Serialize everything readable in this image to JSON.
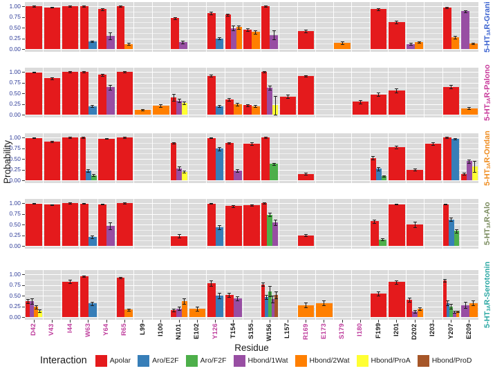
{
  "figure": {
    "y_axis_title": "Probability",
    "x_axis_title": "Residue"
  },
  "legend": {
    "title": "Interaction",
    "items": [
      {
        "label": "Apolar",
        "color": "#E41A1C"
      },
      {
        "label": "Aro/E2F",
        "color": "#377EB8"
      },
      {
        "label": "Aro/F2F",
        "color": "#4DAF4A"
      },
      {
        "label": "Hbond/1Wat",
        "color": "#984EA3"
      },
      {
        "label": "Hbond/2Wat",
        "color": "#FF7F00"
      },
      {
        "label": "Hbond/ProA",
        "color": "#FFFF33"
      },
      {
        "label": "Hbond/ProD",
        "color": "#A65628"
      }
    ]
  },
  "colors": {
    "panel_bg": "#DBDBDB",
    "grid": "#FFFFFF",
    "y_tick_text": "#2F3D99",
    "x_label_normal": "#1A1A1A",
    "x_label_highlight": "#BE3C9C",
    "tick_mark": "#333333",
    "error_bar": "#1A1A1A"
  },
  "chart_data": {
    "type": "bar",
    "ylim": [
      0,
      1
    ],
    "ytick_values": [
      1,
      0.75,
      0.5,
      0.25,
      0
    ],
    "ytick_labels": [
      "1.00",
      "0.75",
      "0.50",
      "0.25",
      "0.00"
    ],
    "grid": "on",
    "legend_position": "bottom",
    "categories": [
      "D42",
      "V43",
      "I44",
      "W63",
      "Y64",
      "R65",
      "L99",
      "I100",
      "N101",
      "E102",
      "Y126",
      "T154",
      "S155",
      "W156",
      "L157",
      "R169",
      "E173",
      "S179",
      "I180",
      "F199",
      "I201",
      "D202",
      "I203",
      "Y207",
      "E209"
    ],
    "highlighted_categories": [
      "D42",
      "V43",
      "I44",
      "W63",
      "Y64",
      "R65",
      "Y126",
      "R169",
      "E173",
      "S179",
      "I180"
    ],
    "interactions": [
      "Apolar",
      "Aro/E2F",
      "Aro/F2F",
      "Hbond/1Wat",
      "Hbond/2Wat",
      "Hbond/ProA",
      "Hbond/ProD"
    ],
    "interaction_colors": {
      "Apolar": "#E41A1C",
      "Aro/E2F": "#377EB8",
      "Aro/F2F": "#4DAF4A",
      "Hbond/1Wat": "#984EA3",
      "Hbond/2Wat": "#FF7F00",
      "Hbond/ProA": "#FFFF33",
      "Hbond/ProD": "#A65628"
    },
    "bar_format": [
      "residue",
      "interaction",
      "probability",
      "error"
    ],
    "panels": [
      {
        "label_prefix": "5-HT",
        "label_sub": "3A",
        "label_suffix": "R-Grani",
        "label_color": "#3C63D0",
        "bars": [
          [
            "D42",
            "Apolar",
            1.0,
            0.01
          ],
          [
            "V43",
            "Apolar",
            0.97,
            0.01
          ],
          [
            "I44",
            "Apolar",
            1.0,
            0.01
          ],
          [
            "W63",
            "Apolar",
            1.0,
            0.01
          ],
          [
            "W63",
            "Aro/E2F",
            0.18,
            0.02
          ],
          [
            "Y64",
            "Apolar",
            0.93,
            0.02
          ],
          [
            "Y64",
            "Hbond/1Wat",
            0.3,
            0.08
          ],
          [
            "R65",
            "Apolar",
            1.0,
            0.01
          ],
          [
            "R65",
            "Hbond/2Wat",
            0.12,
            0.02
          ],
          [
            "N101",
            "Apolar",
            0.72,
            0.03
          ],
          [
            "N101",
            "Hbond/1Wat",
            0.16,
            0.03
          ],
          [
            "Y126",
            "Apolar",
            0.84,
            0.03
          ],
          [
            "Y126",
            "Aro/E2F",
            0.25,
            0.03
          ],
          [
            "T154",
            "Apolar",
            0.8,
            0.03
          ],
          [
            "T154",
            "Hbond/1Wat",
            0.49,
            0.06
          ],
          [
            "T154",
            "Hbond/2Wat",
            0.51,
            0.04
          ],
          [
            "S155",
            "Apolar",
            0.45,
            0.03
          ],
          [
            "S155",
            "Hbond/2Wat",
            0.4,
            0.04
          ],
          [
            "W156",
            "Apolar",
            1.0,
            0.01
          ],
          [
            "W156",
            "Hbond/1Wat",
            0.33,
            0.1
          ],
          [
            "R169",
            "Apolar",
            0.42,
            0.03
          ],
          [
            "S179",
            "Hbond/2Wat",
            0.15,
            0.03
          ],
          [
            "F199",
            "Apolar",
            0.93,
            0.02
          ],
          [
            "I201",
            "Apolar",
            0.63,
            0.03
          ],
          [
            "D202",
            "Hbond/1Wat",
            0.12,
            0.02
          ],
          [
            "D202",
            "Hbond/2Wat",
            0.16,
            0.02
          ],
          [
            "Y207",
            "Apolar",
            0.97,
            0.02
          ],
          [
            "Y207",
            "Hbond/2Wat",
            0.27,
            0.03
          ],
          [
            "E209",
            "Hbond/1Wat",
            0.88,
            0.03
          ],
          [
            "E209",
            "Hbond/2Wat",
            0.13,
            0.02
          ]
        ]
      },
      {
        "label_prefix": "5-HT",
        "label_sub": "3A",
        "label_suffix": "R-Palono",
        "label_color": "#C8399A",
        "bars": [
          [
            "D42",
            "Apolar",
            0.99,
            0.01
          ],
          [
            "V43",
            "Apolar",
            0.85,
            0.02
          ],
          [
            "I44",
            "Apolar",
            1.0,
            0.01
          ],
          [
            "W63",
            "Apolar",
            1.0,
            0.01
          ],
          [
            "W63",
            "Aro/E2F",
            0.2,
            0.03
          ],
          [
            "Y64",
            "Apolar",
            0.93,
            0.02
          ],
          [
            "Y64",
            "Hbond/1Wat",
            0.64,
            0.06
          ],
          [
            "R65",
            "Apolar",
            1.0,
            0.01
          ],
          [
            "L99",
            "Hbond/2Wat",
            0.11,
            0.02
          ],
          [
            "I100",
            "Hbond/2Wat",
            0.21,
            0.04
          ],
          [
            "N101",
            "Apolar",
            0.4,
            0.08
          ],
          [
            "N101",
            "Hbond/1Wat",
            0.33,
            0.04
          ],
          [
            "N101",
            "Hbond/ProA",
            0.27,
            0.03
          ],
          [
            "Y126",
            "Apolar",
            0.91,
            0.02
          ],
          [
            "Y126",
            "Aro/E2F",
            0.2,
            0.03
          ],
          [
            "T154",
            "Apolar",
            0.35,
            0.03
          ],
          [
            "T154",
            "Hbond/2Wat",
            0.24,
            0.03
          ],
          [
            "S155",
            "Apolar",
            0.22,
            0.02
          ],
          [
            "S155",
            "Hbond/2Wat",
            0.2,
            0.03
          ],
          [
            "W156",
            "Apolar",
            1.0,
            0.01
          ],
          [
            "W156",
            "Hbond/1Wat",
            0.63,
            0.05
          ],
          [
            "W156",
            "Hbond/ProA",
            0.22,
            0.22
          ],
          [
            "L157",
            "Apolar",
            0.42,
            0.04
          ],
          [
            "R169",
            "Apolar",
            0.9,
            0.02
          ],
          [
            "I180",
            "Apolar",
            0.3,
            0.04
          ],
          [
            "F199",
            "Apolar",
            0.47,
            0.04
          ],
          [
            "I201",
            "Apolar",
            0.57,
            0.05
          ],
          [
            "Y207",
            "Apolar",
            0.65,
            0.04
          ],
          [
            "E209",
            "Hbond/2Wat",
            0.15,
            0.02
          ]
        ]
      },
      {
        "label_prefix": "5-HT",
        "label_sub": "3A",
        "label_suffix": "R-Ondan",
        "label_color": "#EF8C1F",
        "bars": [
          [
            "D42",
            "Apolar",
            0.99,
            0.01
          ],
          [
            "V43",
            "Apolar",
            0.9,
            0.02
          ],
          [
            "I44",
            "Apolar",
            1.0,
            0.01
          ],
          [
            "W63",
            "Apolar",
            1.0,
            0.01
          ],
          [
            "W63",
            "Aro/E2F",
            0.23,
            0.03
          ],
          [
            "W63",
            "Aro/F2F",
            0.12,
            0.02
          ],
          [
            "Y64",
            "Apolar",
            0.97,
            0.01
          ],
          [
            "R65",
            "Apolar",
            1.0,
            0.01
          ],
          [
            "N101",
            "Apolar",
            0.87,
            0.02
          ],
          [
            "N101",
            "Hbond/1Wat",
            0.28,
            0.04
          ],
          [
            "N101",
            "Hbond/ProA",
            0.2,
            0.02
          ],
          [
            "Y126",
            "Apolar",
            0.99,
            0.01
          ],
          [
            "Y126",
            "Aro/E2F",
            0.74,
            0.04
          ],
          [
            "T154",
            "Apolar",
            0.87,
            0.02
          ],
          [
            "T154",
            "Hbond/1Wat",
            0.23,
            0.03
          ],
          [
            "S155",
            "Apolar",
            0.85,
            0.03
          ],
          [
            "W156",
            "Apolar",
            1.0,
            0.01
          ],
          [
            "W156",
            "Aro/F2F",
            0.38,
            0.03
          ],
          [
            "R169",
            "Apolar",
            0.15,
            0.02
          ],
          [
            "F199",
            "Apolar",
            0.52,
            0.04
          ],
          [
            "F199",
            "Aro/E2F",
            0.27,
            0.04
          ],
          [
            "F199",
            "Aro/F2F",
            0.1,
            0.02
          ],
          [
            "I201",
            "Apolar",
            0.78,
            0.03
          ],
          [
            "D202",
            "Apolar",
            0.25,
            0.03
          ],
          [
            "I203",
            "Apolar",
            0.85,
            0.03
          ],
          [
            "Y207",
            "Apolar",
            1.0,
            0.01
          ],
          [
            "Y207",
            "Aro/E2F",
            0.97,
            0.02
          ],
          [
            "E209",
            "Apolar",
            0.15,
            0.02
          ],
          [
            "E209",
            "Hbond/1Wat",
            0.45,
            0.04
          ],
          [
            "E209",
            "Hbond/ProA",
            0.32,
            0.13
          ]
        ]
      },
      {
        "label_prefix": "5-HT",
        "label_sub": "3A",
        "label_suffix": "R-Alo",
        "label_color": "#7A8B5E",
        "bars": [
          [
            "D42",
            "Apolar",
            0.99,
            0.01
          ],
          [
            "V43",
            "Apolar",
            0.96,
            0.01
          ],
          [
            "I44",
            "Apolar",
            1.0,
            0.01
          ],
          [
            "W63",
            "Apolar",
            0.99,
            0.01
          ],
          [
            "W63",
            "Aro/E2F",
            0.21,
            0.03
          ],
          [
            "Y64",
            "Apolar",
            0.97,
            0.01
          ],
          [
            "Y64",
            "Hbond/1Wat",
            0.47,
            0.08
          ],
          [
            "R65",
            "Apolar",
            1.0,
            0.01
          ],
          [
            "N101",
            "Apolar",
            0.23,
            0.04
          ],
          [
            "Y126",
            "Apolar",
            0.99,
            0.01
          ],
          [
            "Y126",
            "Aro/E2F",
            0.44,
            0.05
          ],
          [
            "T154",
            "Apolar",
            0.93,
            0.02
          ],
          [
            "S155",
            "Apolar",
            0.95,
            0.02
          ],
          [
            "W156",
            "Apolar",
            1.0,
            0.01
          ],
          [
            "W156",
            "Aro/F2F",
            0.73,
            0.04
          ],
          [
            "W156",
            "Hbond/1Wat",
            0.55,
            0.06
          ],
          [
            "R169",
            "Apolar",
            0.25,
            0.03
          ],
          [
            "F199",
            "Apolar",
            0.58,
            0.04
          ],
          [
            "F199",
            "Aro/F2F",
            0.15,
            0.02
          ],
          [
            "I201",
            "Apolar",
            0.97,
            0.01
          ],
          [
            "D202",
            "Apolar",
            0.5,
            0.06
          ],
          [
            "Y207",
            "Apolar",
            0.97,
            0.01
          ],
          [
            "Y207",
            "Aro/E2F",
            0.62,
            0.04
          ],
          [
            "Y207",
            "Aro/F2F",
            0.35,
            0.04
          ]
        ]
      },
      {
        "label_prefix": "5-HT",
        "label_sub": "3A",
        "label_suffix": "R-Serotonin",
        "label_color": "#2CA8A4",
        "bars": [
          [
            "D42",
            "Apolar",
            0.37,
            0.05
          ],
          [
            "D42",
            "Hbond/1Wat",
            0.37,
            0.06
          ],
          [
            "D42",
            "Hbond/2Wat",
            0.24,
            0.04
          ],
          [
            "D42",
            "Hbond/ProA",
            0.15,
            0.03
          ],
          [
            "I44",
            "Apolar",
            0.83,
            0.04
          ],
          [
            "W63",
            "Apolar",
            0.95,
            0.02
          ],
          [
            "W63",
            "Aro/E2F",
            0.32,
            0.04
          ],
          [
            "R65",
            "Apolar",
            0.92,
            0.02
          ],
          [
            "R65",
            "Hbond/2Wat",
            0.17,
            0.03
          ],
          [
            "N101",
            "Apolar",
            0.16,
            0.03
          ],
          [
            "N101",
            "Hbond/1Wat",
            0.2,
            0.04
          ],
          [
            "N101",
            "Hbond/2Wat",
            0.37,
            0.06
          ],
          [
            "E102",
            "Hbond/2Wat",
            0.19,
            0.05
          ],
          [
            "Y126",
            "Apolar",
            0.79,
            0.06
          ],
          [
            "Y126",
            "Aro/E2F",
            0.5,
            0.06
          ],
          [
            "T154",
            "Apolar",
            0.51,
            0.05
          ],
          [
            "T154",
            "Hbond/1Wat",
            0.44,
            0.05
          ],
          [
            "W156",
            "Apolar",
            0.76,
            0.04
          ],
          [
            "W156",
            "Aro/E2F",
            0.47,
            0.05
          ],
          [
            "W156",
            "Aro/F2F",
            0.6,
            0.12
          ],
          [
            "W156",
            "Hbond/1Wat",
            0.42,
            0.08
          ],
          [
            "W156",
            "Hbond/ProD",
            0.52,
            0.08
          ],
          [
            "R169",
            "Hbond/2Wat",
            0.28,
            0.06
          ],
          [
            "E173",
            "Hbond/2Wat",
            0.33,
            0.05
          ],
          [
            "F199",
            "Apolar",
            0.55,
            0.05
          ],
          [
            "I201",
            "Apolar",
            0.82,
            0.04
          ],
          [
            "D202",
            "Apolar",
            0.4,
            0.05
          ],
          [
            "D202",
            "Hbond/1Wat",
            0.13,
            0.03
          ],
          [
            "D202",
            "Hbond/2Wat",
            0.19,
            0.03
          ],
          [
            "Y207",
            "Apolar",
            0.85,
            0.03
          ],
          [
            "Y207",
            "Aro/E2F",
            0.33,
            0.05
          ],
          [
            "Y207",
            "Aro/F2F",
            0.25,
            0.06
          ],
          [
            "Y207",
            "Hbond/1Wat",
            0.12,
            0.02
          ],
          [
            "Y207",
            "Hbond/2Wat",
            0.13,
            0.02
          ],
          [
            "E209",
            "Hbond/1Wat",
            0.28,
            0.07
          ],
          [
            "E209",
            "Hbond/2Wat",
            0.33,
            0.05
          ]
        ]
      }
    ]
  }
}
